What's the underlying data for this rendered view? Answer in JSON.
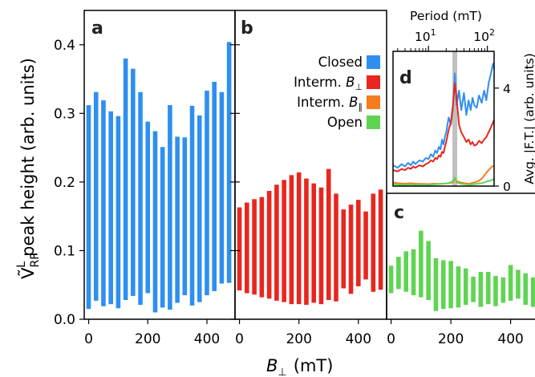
{
  "chart_data": [
    {
      "panel": "a",
      "type": "bar",
      "legend_label": "Closed",
      "color": "#2e8ff0",
      "x": [
        0,
        25,
        50,
        75,
        100,
        125,
        150,
        175,
        200,
        225,
        250,
        275,
        300,
        325,
        350,
        375,
        400,
        425,
        450,
        475
      ],
      "y_top": [
        0.312,
        0.331,
        0.319,
        0.303,
        0.296,
        0.38,
        0.365,
        0.331,
        0.288,
        0.274,
        0.251,
        0.312,
        0.266,
        0.265,
        0.311,
        0.297,
        0.333,
        0.346,
        0.331,
        0.404
      ],
      "y_bottom": [
        0.015,
        0.027,
        0.019,
        0.022,
        0.016,
        0.028,
        0.034,
        0.021,
        0.038,
        0.01,
        0.017,
        0.014,
        0.024,
        0.035,
        0.02,
        0.025,
        0.035,
        0.041,
        0.052,
        0.053
      ],
      "ylim": [
        0,
        0.45
      ],
      "xlim": [
        -15,
        495
      ],
      "yticks": [
        "0.0",
        "0.1",
        "0.2",
        "0.3",
        "0.4"
      ],
      "xticks": [
        "0",
        "200",
        "400"
      ]
    },
    {
      "panel": "b",
      "type": "bar",
      "legend_label": "Interm. B⊥",
      "color": "#e8261e",
      "x": [
        0,
        25,
        50,
        75,
        100,
        125,
        150,
        175,
        200,
        225,
        250,
        275,
        300,
        325,
        350,
        375,
        400,
        425,
        450,
        475
      ],
      "y_top": [
        0.163,
        0.17,
        0.175,
        0.178,
        0.187,
        0.196,
        0.203,
        0.21,
        0.214,
        0.205,
        0.198,
        0.192,
        0.219,
        0.183,
        0.16,
        0.167,
        0.174,
        0.157,
        0.183,
        0.189
      ],
      "y_bottom": [
        0.042,
        0.038,
        0.036,
        0.032,
        0.03,
        0.027,
        0.025,
        0.022,
        0.022,
        0.021,
        0.024,
        0.022,
        0.028,
        0.026,
        0.045,
        0.037,
        0.048,
        0.058,
        0.04,
        0.043
      ],
      "ylim": [
        0,
        0.45
      ],
      "xlim": [
        -15,
        495
      ],
      "xticks": [
        "0",
        "200",
        "400"
      ]
    },
    {
      "panel": "c",
      "type": "bar",
      "legend_label": "Open",
      "color": "#5fd452",
      "x": [
        0,
        25,
        50,
        75,
        100,
        125,
        150,
        175,
        200,
        225,
        250,
        275,
        300,
        325,
        350,
        375,
        400,
        425,
        450,
        475
      ],
      "y_top": [
        0.078,
        0.091,
        0.099,
        0.102,
        0.129,
        0.114,
        0.089,
        0.086,
        0.085,
        0.077,
        0.074,
        0.062,
        0.069,
        0.069,
        0.063,
        0.061,
        0.079,
        0.072,
        0.067,
        0.061
      ],
      "y_bottom": [
        0.038,
        0.044,
        0.04,
        0.035,
        0.032,
        0.028,
        0.012,
        0.015,
        0.016,
        0.017,
        0.021,
        0.025,
        0.018,
        0.022,
        0.019,
        0.024,
        0.027,
        0.03,
        0.021,
        0.018
      ],
      "ylim": [
        0,
        0.45
      ],
      "xlim": [
        -15,
        495
      ],
      "xticks": [
        "0",
        "200",
        "400"
      ]
    },
    {
      "panel": "d",
      "type": "line",
      "xscale": "log",
      "xlabel": "Period (mT)",
      "ylabel": "Avg. |F.T.| (arb. units)",
      "xticks": [
        "10",
        "10"
      ],
      "xtick_exponents": [
        "1",
        "2"
      ],
      "yticks": [
        "0",
        "4"
      ],
      "xlim": [
        2.5,
        130
      ],
      "ylim": [
        0,
        5.5
      ],
      "highlight_period": 28,
      "series": [
        {
          "color": "#2e8ff0",
          "x": [
            2.5,
            3,
            3.5,
            4,
            4.5,
            5,
            5.5,
            6,
            7,
            8,
            9,
            10,
            11,
            12,
            13,
            14,
            15,
            16,
            17,
            18,
            19,
            20,
            22,
            24,
            26,
            28,
            30,
            33,
            36,
            40,
            44,
            48,
            52,
            56,
            60,
            66,
            72,
            80,
            88,
            96,
            105,
            115,
            125,
            130
          ],
          "y": [
            0.85,
            0.75,
            0.9,
            0.8,
            0.95,
            0.85,
            1.0,
            0.9,
            1.05,
            1.0,
            1.15,
            1.1,
            1.3,
            1.2,
            1.45,
            1.35,
            1.6,
            1.5,
            1.9,
            1.7,
            2.0,
            2.2,
            2.8,
            2.5,
            3.2,
            4.6,
            3.3,
            3.9,
            3.1,
            3.8,
            2.9,
            3.5,
            3.1,
            3.6,
            3.3,
            3.2,
            3.7,
            3.4,
            3.9,
            3.5,
            4.2,
            4.6,
            5.0,
            4.8
          ]
        },
        {
          "color": "#e8261e",
          "x": [
            2.5,
            3,
            3.5,
            4,
            4.5,
            5,
            5.5,
            6,
            7,
            8,
            9,
            10,
            11,
            12,
            13,
            14,
            15,
            16,
            17,
            18,
            19,
            20,
            22,
            24,
            26,
            28,
            30,
            33,
            36,
            40,
            44,
            48,
            52,
            56,
            60,
            66,
            72,
            80,
            88,
            96,
            105,
            115,
            125,
            130
          ],
          "y": [
            0.65,
            0.6,
            0.7,
            0.65,
            0.75,
            0.7,
            0.8,
            0.75,
            0.85,
            0.8,
            0.9,
            0.95,
            1.05,
            1.0,
            1.15,
            1.1,
            1.25,
            1.2,
            1.4,
            1.35,
            1.6,
            1.8,
            2.3,
            2.6,
            3.3,
            4.2,
            3.6,
            2.5,
            2.2,
            2.0,
            1.8,
            1.9,
            1.7,
            1.8,
            1.65,
            1.7,
            1.85,
            1.75,
            1.9,
            2.0,
            2.2,
            2.4,
            2.6,
            2.7
          ]
        },
        {
          "color": "#f57c1f",
          "x": [
            2.5,
            3,
            4,
            5,
            6,
            8,
            10,
            12,
            15,
            18,
            22,
            26,
            28,
            30,
            35,
            40,
            50,
            60,
            70,
            80,
            90,
            100,
            110,
            120,
            130
          ],
          "y": [
            0.15,
            0.12,
            0.1,
            0.12,
            0.1,
            0.09,
            0.08,
            0.1,
            0.09,
            0.1,
            0.12,
            0.15,
            0.3,
            0.2,
            0.15,
            0.12,
            0.1,
            0.15,
            0.2,
            0.3,
            0.45,
            0.6,
            0.7,
            0.8,
            0.82
          ]
        },
        {
          "color": "#5fd452",
          "x": [
            2.5,
            3,
            4,
            5,
            6,
            8,
            10,
            12,
            15,
            18,
            22,
            26,
            28,
            30,
            35,
            40,
            50,
            60,
            70,
            80,
            90,
            100,
            110,
            120,
            130
          ],
          "y": [
            0.08,
            0.06,
            0.05,
            0.07,
            0.05,
            0.06,
            0.05,
            0.07,
            0.08,
            0.1,
            0.12,
            0.2,
            0.35,
            0.15,
            0.1,
            0.08,
            0.06,
            0.08,
            0.1,
            0.12,
            0.15,
            0.2,
            0.22,
            0.25,
            0.3
          ]
        }
      ]
    }
  ],
  "labels": {
    "panel_a": "a",
    "panel_b": "b",
    "panel_c": "c",
    "panel_d": "d",
    "ylabel_main_prefix": "peak height (arb. units)",
    "ylabel_symbol": "Ṽ",
    "ylabel_sup": "L",
    "ylabel_sub": "RF",
    "xlabel_main_symbol": "B",
    "xlabel_main_sub": "⊥",
    "xlabel_main_unit": "(mT)",
    "legend_closed": "Closed",
    "legend_interm_perp": "Interm. B⊥",
    "legend_interm_par": "Interm. B∥",
    "legend_open": "Open",
    "legend_interm_prefix": "Interm. ",
    "legend_interm_B": "B",
    "legend_perp_sub": "⊥",
    "legend_par_sub": "∥"
  },
  "colors": {
    "closed": "#2e8ff0",
    "interm_perp": "#e8261e",
    "interm_par": "#f57c1f",
    "open": "#5fd452",
    "highlight": "#b0b0b0"
  }
}
